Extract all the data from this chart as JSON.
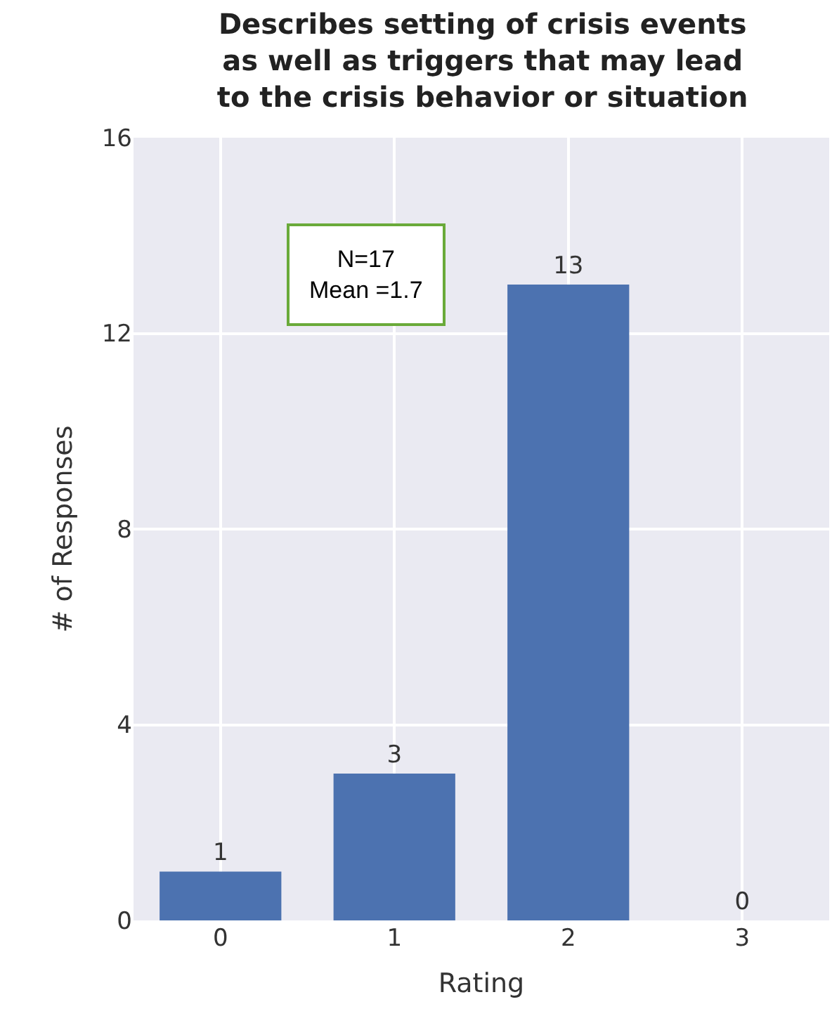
{
  "chart_data": {
    "type": "bar",
    "title": "Describes setting of crisis events\nas well as triggers that may lead\nto the crisis behavior or situation",
    "xlabel": "Rating",
    "ylabel": "# of Responses",
    "categories": [
      "0",
      "1",
      "2",
      "3"
    ],
    "series": [
      {
        "color": "#4c72b0",
        "values": [
          1,
          3,
          13,
          0
        ]
      }
    ],
    "ylim": [
      0,
      16
    ],
    "yticks": [
      0,
      4,
      8,
      12,
      16
    ],
    "grid": true,
    "data_labels": true,
    "annotations": [
      "N=17\nMean =1.7"
    ]
  }
}
